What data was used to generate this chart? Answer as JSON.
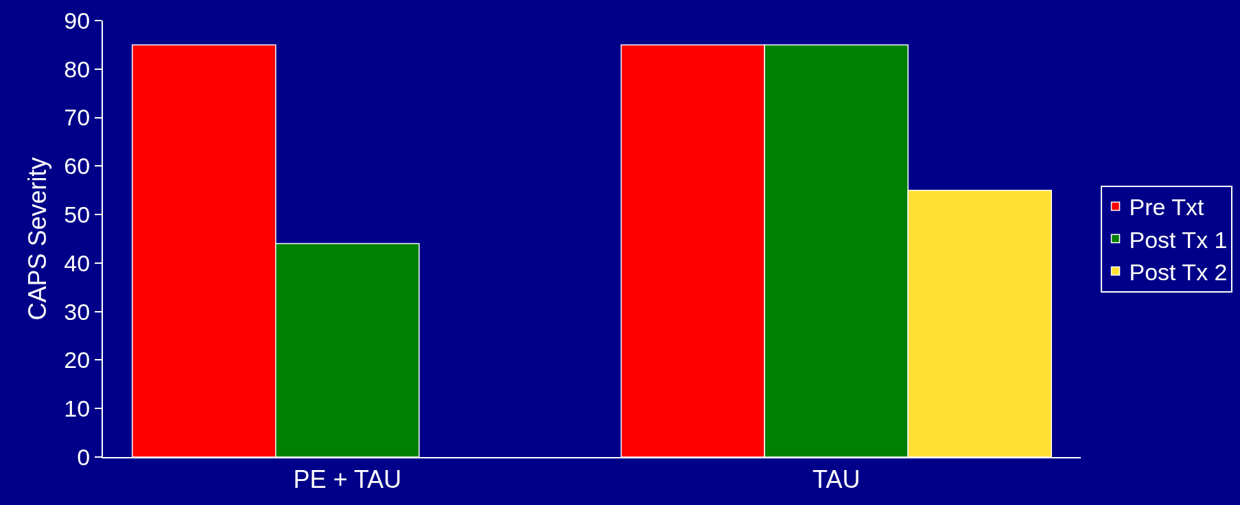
{
  "chart_data": {
    "type": "bar",
    "ylabel": "CAPS Severity",
    "categories": [
      "PE + TAU",
      "TAU"
    ],
    "series": [
      {
        "name": "Pre Txt",
        "color": "#ff0000",
        "values": [
          85,
          85
        ]
      },
      {
        "name": "Post Tx 1",
        "color": "#008000",
        "values": [
          44,
          85
        ]
      },
      {
        "name": "Post Tx 2",
        "color": "#ffe033",
        "values": [
          null,
          55
        ]
      }
    ],
    "ylim": [
      0,
      90
    ],
    "yticks": [
      0,
      10,
      20,
      30,
      40,
      50,
      60,
      70,
      80,
      90
    ],
    "grid": false,
    "legend": "right"
  }
}
